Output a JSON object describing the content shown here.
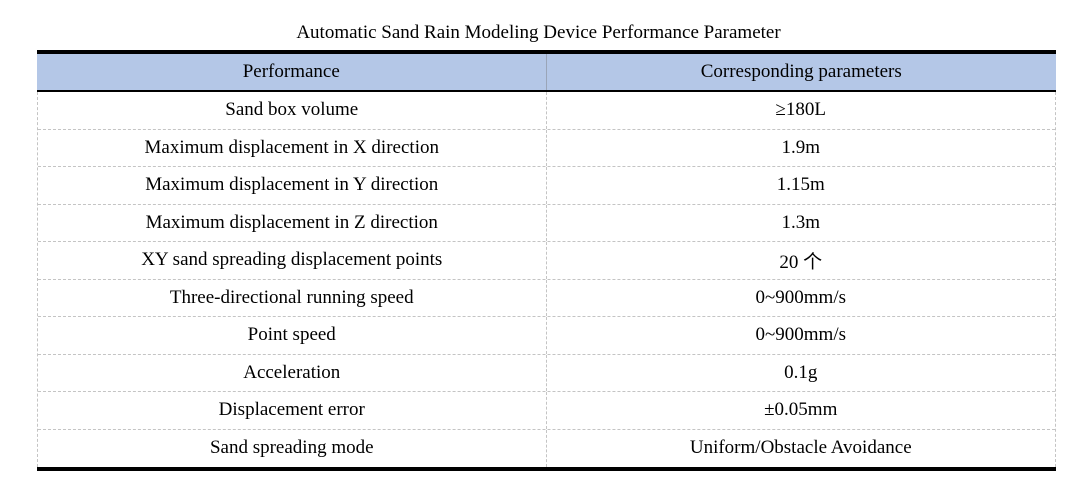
{
  "title": "Automatic Sand Rain Modeling Device Performance Parameter",
  "colors": {
    "header_bg": "#b4c7e7",
    "heavy_border": "#000000",
    "dashed_border": "#c4c4c4"
  },
  "table": {
    "headers": [
      "Performance",
      "Corresponding parameters"
    ],
    "rows": [
      [
        "Sand box volume",
        "≥180L"
      ],
      [
        "Maximum displacement in X direction",
        "1.9m"
      ],
      [
        "Maximum displacement in Y direction",
        "1.15m"
      ],
      [
        "Maximum displacement in Z direction",
        "1.3m"
      ],
      [
        "XY sand spreading displacement points",
        "20 个"
      ],
      [
        "Three-directional running speed",
        "0~900mm/s"
      ],
      [
        "Point speed",
        "0~900mm/s"
      ],
      [
        "Acceleration",
        "0.1g"
      ],
      [
        "Displacement error",
        "±0.05mm"
      ],
      [
        "Sand spreading mode",
        "Uniform/Obstacle Avoidance"
      ]
    ]
  }
}
